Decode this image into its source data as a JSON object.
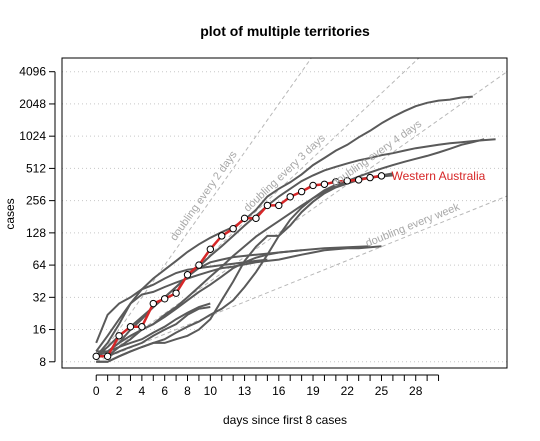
{
  "chart_data": {
    "type": "line",
    "title": "plot of multiple territories",
    "xlabel": "days since first 8 cases",
    "ylabel": "cases",
    "log_scale_y": true,
    "xlim": [
      -3,
      36
    ],
    "ylim": [
      7,
      5500
    ],
    "x_ticks": [
      0,
      1,
      2,
      3,
      4,
      5,
      6,
      7,
      8,
      9,
      10,
      11,
      12,
      13,
      14,
      15,
      16,
      17,
      18,
      19,
      20,
      21,
      22,
      23,
      24,
      25,
      26,
      27,
      28,
      29,
      30
    ],
    "x_tick_labels": [
      {
        "x": 0,
        "label": "0"
      },
      {
        "x": 2,
        "label": "2"
      },
      {
        "x": 4,
        "label": "4"
      },
      {
        "x": 6,
        "label": "6"
      },
      {
        "x": 8,
        "label": "8"
      },
      {
        "x": 10,
        "label": "10"
      },
      {
        "x": 13,
        "label": "13"
      },
      {
        "x": 16,
        "label": "16"
      },
      {
        "x": 19,
        "label": "19"
      },
      {
        "x": 22,
        "label": "22"
      },
      {
        "x": 25,
        "label": "25"
      },
      {
        "x": 28,
        "label": "28"
      }
    ],
    "y_ticks": [
      {
        "y": 8,
        "label": "8"
      },
      {
        "y": 16,
        "label": "16"
      },
      {
        "y": 32,
        "label": "32"
      },
      {
        "y": 64,
        "label": "64"
      },
      {
        "y": 128,
        "label": "128"
      },
      {
        "y": 256,
        "label": "256"
      },
      {
        "y": 512,
        "label": "512"
      },
      {
        "y": 1024,
        "label": "1024"
      },
      {
        "y": 2048,
        "label": "2048"
      },
      {
        "y": 4096,
        "label": "4096"
      }
    ],
    "grid": "horizontal dotted",
    "reference_lines": [
      {
        "label": "doubling every 2 days",
        "doubling_days": 2,
        "label_at_x": 10
      },
      {
        "label": "doubling every 3 days",
        "doubling_days": 3,
        "label_at_x": 17
      },
      {
        "label": "doubling every 4 days",
        "doubling_days": 4,
        "label_at_x": 25
      },
      {
        "label": "doubling every week",
        "doubling_days": 7,
        "label_at_x": 28
      }
    ],
    "highlight": {
      "name": "Western Australia",
      "color": "#d62728",
      "x": [
        0,
        1,
        2,
        3,
        4,
        5,
        6,
        7,
        8,
        9,
        10,
        11,
        12,
        13,
        14,
        15,
        16,
        17,
        18,
        19,
        20,
        21,
        22,
        23,
        24,
        25
      ],
      "y": [
        9,
        9,
        14,
        17,
        17,
        28,
        31,
        35,
        52,
        64,
        90,
        120,
        140,
        175,
        175,
        231,
        231,
        278,
        311,
        355,
        364,
        384,
        392,
        400,
        420,
        436
      ]
    },
    "series": [
      {
        "x": [
          0,
          1,
          2,
          3,
          4,
          5,
          6,
          7,
          8,
          9,
          10,
          11,
          12,
          13,
          14,
          15,
          16,
          17,
          18,
          19,
          20,
          21,
          22,
          23,
          24,
          25,
          26,
          27,
          28,
          29,
          30,
          31,
          32,
          33
        ],
        "y": [
          10,
          14,
          20,
          28,
          38,
          48,
          58,
          70,
          85,
          100,
          115,
          130,
          145,
          170,
          210,
          280,
          330,
          380,
          450,
          550,
          640,
          750,
          850,
          1000,
          1150,
          1350,
          1550,
          1750,
          1950,
          2100,
          2200,
          2250,
          2350,
          2400
        ]
      },
      {
        "x": [
          0,
          1,
          2,
          3,
          4,
          5,
          6,
          7,
          8,
          9,
          10,
          11,
          12,
          13,
          14,
          15,
          16,
          17,
          18,
          19,
          20,
          21,
          22,
          23,
          24,
          25,
          26,
          27,
          28,
          29,
          30,
          31,
          32,
          33,
          34,
          35
        ],
        "y": [
          9,
          10,
          12,
          16,
          20,
          26,
          32,
          40,
          50,
          62,
          78,
          96,
          120,
          150,
          185,
          230,
          280,
          330,
          390,
          440,
          490,
          530,
          570,
          610,
          640,
          680,
          710,
          750,
          790,
          820,
          850,
          880,
          900,
          920,
          940,
          960
        ]
      },
      {
        "x": [
          0,
          1,
          2,
          3,
          4,
          5,
          6,
          7,
          8,
          9,
          10,
          11,
          12,
          13,
          14,
          15,
          16,
          17,
          18,
          19,
          20,
          21,
          22,
          23,
          24,
          25,
          26,
          27,
          28,
          29,
          30,
          31,
          32,
          33,
          34
        ],
        "y": [
          9,
          9,
          11,
          13,
          16,
          18,
          22,
          26,
          32,
          40,
          50,
          62,
          78,
          96,
          118,
          140,
          165,
          195,
          230,
          270,
          310,
          350,
          390,
          430,
          470,
          510,
          550,
          590,
          630,
          670,
          720,
          780,
          850,
          900,
          960
        ]
      },
      {
        "x": [
          0,
          1,
          2,
          3,
          4,
          5,
          6,
          7,
          8,
          9,
          10,
          11,
          12,
          13,
          14,
          15,
          16,
          17,
          18,
          19,
          20,
          21,
          22,
          23,
          24,
          25,
          26
        ],
        "y": [
          8,
          8,
          9,
          10,
          11,
          12,
          13,
          15,
          17,
          19,
          22,
          25,
          30,
          40,
          55,
          80,
          120,
          170,
          220,
          270,
          320,
          360,
          390,
          410,
          420,
          430,
          440
        ]
      },
      {
        "x": [
          0,
          1,
          2,
          3,
          4,
          5,
          6,
          7,
          8,
          9,
          10,
          11,
          12,
          13,
          14,
          15,
          16,
          17,
          18,
          19,
          20,
          21,
          22,
          23,
          24,
          25,
          26
        ],
        "y": [
          8,
          8,
          9,
          10,
          11,
          12,
          12,
          13,
          14,
          16,
          20,
          30,
          45,
          70,
          95,
          120,
          120,
          150,
          200,
          250,
          300,
          340,
          370,
          400,
          420,
          440,
          460
        ]
      },
      {
        "x": [
          0,
          1,
          2,
          3,
          4,
          5,
          6,
          7,
          8,
          9,
          10,
          11,
          12,
          13,
          14,
          15,
          16,
          17,
          18,
          19,
          20,
          21,
          22,
          23,
          24,
          25
        ],
        "y": [
          9,
          12,
          18,
          28,
          34,
          36,
          40,
          44,
          48,
          52,
          56,
          60,
          62,
          65,
          68,
          70,
          72,
          76,
          80,
          84,
          88,
          90,
          92,
          92,
          94,
          96
        ]
      },
      {
        "x": [
          0,
          1,
          2,
          3,
          4,
          5,
          6,
          7,
          8,
          9,
          10,
          11,
          12,
          13,
          14,
          15,
          16,
          17,
          18,
          19,
          20,
          21,
          22,
          23,
          24
        ],
        "y": [
          10,
          10,
          12,
          14,
          16,
          18,
          21,
          25,
          30,
          36,
          42,
          50,
          60,
          68,
          75,
          80,
          84,
          86,
          88,
          90,
          92,
          93,
          94,
          95,
          96
        ]
      },
      {
        "x": [
          0,
          1,
          2,
          3,
          4,
          5,
          6,
          7,
          8,
          9,
          10,
          11,
          12,
          13,
          14,
          15,
          16,
          17,
          18
        ],
        "y": [
          9,
          11,
          14,
          17,
          21,
          26,
          32,
          40,
          50,
          60,
          68,
          72,
          76,
          78,
          80,
          82,
          84,
          86,
          88
        ]
      },
      {
        "x": [
          0,
          1,
          2,
          3,
          4,
          5,
          6,
          7,
          8,
          9,
          10
        ],
        "y": [
          9,
          9,
          10,
          11,
          12,
          14,
          16,
          18,
          22,
          25,
          26
        ]
      },
      {
        "x": [
          0,
          1,
          2,
          3,
          4,
          5,
          6,
          7,
          8,
          9,
          10
        ],
        "y": [
          9,
          10,
          11,
          12,
          13,
          15,
          17,
          20,
          23,
          26,
          28
        ]
      },
      {
        "x": [
          0,
          1,
          2,
          3,
          4,
          5,
          6,
          7,
          8,
          9,
          10,
          11,
          12,
          13,
          14,
          15
        ],
        "y": [
          12,
          22,
          28,
          32,
          38,
          42,
          48,
          54,
          58,
          60,
          62,
          64,
          66,
          68,
          70,
          72
        ]
      }
    ]
  }
}
